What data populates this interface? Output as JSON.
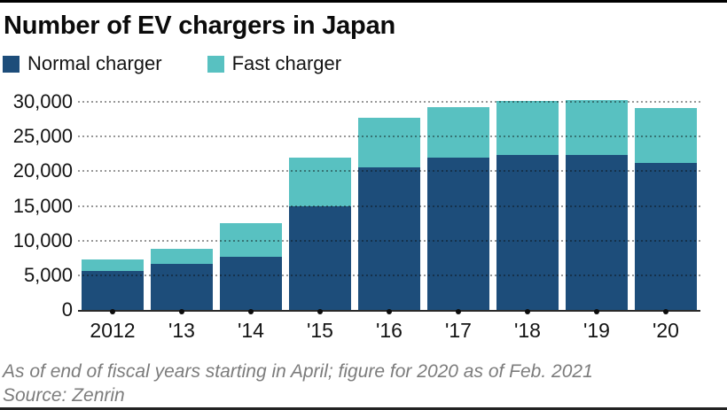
{
  "header": {
    "title": "Number of EV chargers in Japan"
  },
  "legend": [
    {
      "label": "Normal charger",
      "color": "#1d4d7a"
    },
    {
      "label": "Fast charger",
      "color": "#58c1c1"
    }
  ],
  "chart_data": {
    "type": "bar",
    "stacked": true,
    "title": "Number of EV chargers in Japan",
    "categories": [
      "2012",
      "'13",
      "'14",
      "'15",
      "'16",
      "'17",
      "'18",
      "'19",
      "'20"
    ],
    "series": [
      {
        "name": "Normal charger",
        "color": "#1d4d7a",
        "values": [
          5600,
          6700,
          7700,
          15000,
          20600,
          21900,
          22300,
          22300,
          21200
        ]
      },
      {
        "name": "Fast charger",
        "color": "#58c1c1",
        "values": [
          1700,
          2100,
          4800,
          6900,
          7100,
          7300,
          7800,
          7900,
          7900
        ]
      }
    ],
    "totals": [
      7300,
      8800,
      12500,
      21900,
      27700,
      29200,
      30100,
      30200,
      29100
    ],
    "xlabel": "",
    "ylabel": "",
    "ylim": [
      0,
      30700
    ],
    "yticks": [
      0,
      5000,
      10000,
      15000,
      20000,
      25000,
      30000
    ],
    "ytick_labels": [
      "0",
      "5,000",
      "10,000",
      "15,000",
      "20,000",
      "25,000",
      "30,000"
    ],
    "grid": "horizontal-dotted",
    "legend_position": "top-left"
  },
  "footer": {
    "note": "As of end of fiscal years starting in April; figure for 2020 as of Feb. 2021",
    "source": "Source: Zenrin"
  }
}
